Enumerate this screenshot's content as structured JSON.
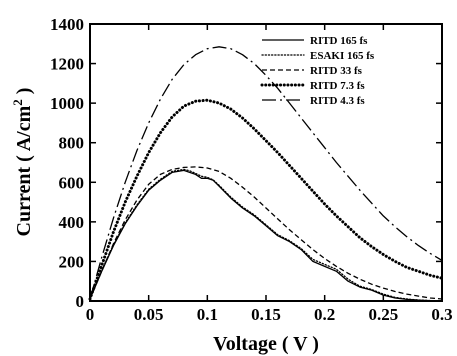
{
  "chart_data": {
    "type": "line",
    "xlabel": "Voltage ( V )",
    "ylabel_main": "Current ( A/cm",
    "ylabel_sup": "2",
    "ylabel_tail": " )",
    "xlim": [
      0,
      0.3
    ],
    "ylim": [
      0,
      1400
    ],
    "xticks": [
      0,
      0.05,
      0.1,
      0.15,
      0.2,
      0.25,
      0.3
    ],
    "xtick_labels": [
      "0",
      "0.05",
      "0.1",
      "0.15",
      "0.2",
      "0.25",
      "0.3"
    ],
    "yticks": [
      0,
      200,
      400,
      600,
      800,
      1000,
      1200,
      1400
    ],
    "ytick_labels": [
      "0",
      "200",
      "400",
      "600",
      "800",
      "1000",
      "1200",
      "1400"
    ],
    "grid": false,
    "legend_position": "top-right",
    "series": [
      {
        "name": "RITD 165 fs",
        "style": "solid",
        "x": [
          0,
          0.01,
          0.02,
          0.03,
          0.04,
          0.05,
          0.06,
          0.07,
          0.08,
          0.085,
          0.09,
          0.095,
          0.1,
          0.105,
          0.11,
          0.12,
          0.13,
          0.14,
          0.15,
          0.16,
          0.17,
          0.18,
          0.19,
          0.2,
          0.21,
          0.22,
          0.23,
          0.24,
          0.25,
          0.26,
          0.27,
          0.28,
          0.29,
          0.3
        ],
        "y": [
          10,
          150,
          280,
          390,
          480,
          560,
          610,
          650,
          660,
          650,
          640,
          620,
          620,
          610,
          580,
          520,
          470,
          430,
          380,
          330,
          300,
          260,
          200,
          175,
          150,
          100,
          70,
          55,
          30,
          15,
          8,
          4,
          2,
          0
        ]
      },
      {
        "name": "ESAKI 165 fs",
        "style": "dotted",
        "x": [
          0,
          0.01,
          0.02,
          0.03,
          0.04,
          0.05,
          0.06,
          0.07,
          0.08,
          0.085,
          0.09,
          0.095,
          0.1,
          0.105,
          0.11,
          0.12,
          0.13,
          0.14,
          0.15,
          0.16,
          0.17,
          0.18,
          0.19,
          0.2,
          0.21,
          0.22,
          0.23,
          0.24,
          0.25,
          0.26,
          0.27,
          0.28,
          0.29,
          0.3
        ],
        "y": [
          10,
          155,
          285,
          395,
          485,
          565,
          615,
          655,
          665,
          658,
          645,
          630,
          625,
          612,
          585,
          525,
          475,
          435,
          385,
          335,
          305,
          265,
          210,
          185,
          160,
          110,
          75,
          58,
          35,
          18,
          10,
          5,
          2,
          0
        ]
      },
      {
        "name": "RITD 33 fs",
        "style": "dashed",
        "x": [
          0,
          0.01,
          0.02,
          0.03,
          0.04,
          0.05,
          0.06,
          0.07,
          0.08,
          0.09,
          0.1,
          0.11,
          0.12,
          0.13,
          0.14,
          0.15,
          0.16,
          0.17,
          0.18,
          0.19,
          0.2,
          0.21,
          0.22,
          0.23,
          0.24,
          0.25,
          0.26,
          0.27,
          0.28,
          0.29,
          0.3
        ],
        "y": [
          10,
          150,
          290,
          410,
          510,
          590,
          640,
          665,
          675,
          678,
          672,
          655,
          620,
          575,
          525,
          470,
          415,
          360,
          310,
          260,
          215,
          175,
          140,
          110,
          85,
          65,
          48,
          35,
          25,
          15,
          10
        ]
      },
      {
        "name": "RITD 7.3 fs",
        "style": "thick-dotted",
        "x": [
          0,
          0.01,
          0.02,
          0.03,
          0.04,
          0.05,
          0.06,
          0.07,
          0.08,
          0.09,
          0.1,
          0.11,
          0.12,
          0.13,
          0.14,
          0.15,
          0.16,
          0.17,
          0.18,
          0.19,
          0.2,
          0.21,
          0.22,
          0.23,
          0.24,
          0.25,
          0.26,
          0.27,
          0.28,
          0.29,
          0.3
        ],
        "y": [
          10,
          180,
          350,
          500,
          630,
          750,
          850,
          930,
          985,
          1010,
          1015,
          1000,
          970,
          925,
          870,
          810,
          750,
          685,
          620,
          555,
          490,
          430,
          375,
          320,
          275,
          235,
          200,
          170,
          150,
          130,
          115
        ]
      },
      {
        "name": "RITD 4.3 fs",
        "style": "dash-dot",
        "x": [
          0,
          0.01,
          0.02,
          0.03,
          0.04,
          0.05,
          0.06,
          0.07,
          0.08,
          0.09,
          0.1,
          0.11,
          0.12,
          0.13,
          0.14,
          0.15,
          0.16,
          0.17,
          0.18,
          0.19,
          0.2,
          0.21,
          0.22,
          0.23,
          0.24,
          0.25,
          0.26,
          0.27,
          0.28,
          0.29,
          0.3
        ],
        "y": [
          10,
          220,
          420,
          600,
          760,
          900,
          1020,
          1120,
          1195,
          1245,
          1275,
          1285,
          1275,
          1245,
          1200,
          1140,
          1075,
          1000,
          925,
          850,
          775,
          700,
          630,
          560,
          495,
          430,
          375,
          325,
          280,
          240,
          205
        ]
      }
    ]
  }
}
